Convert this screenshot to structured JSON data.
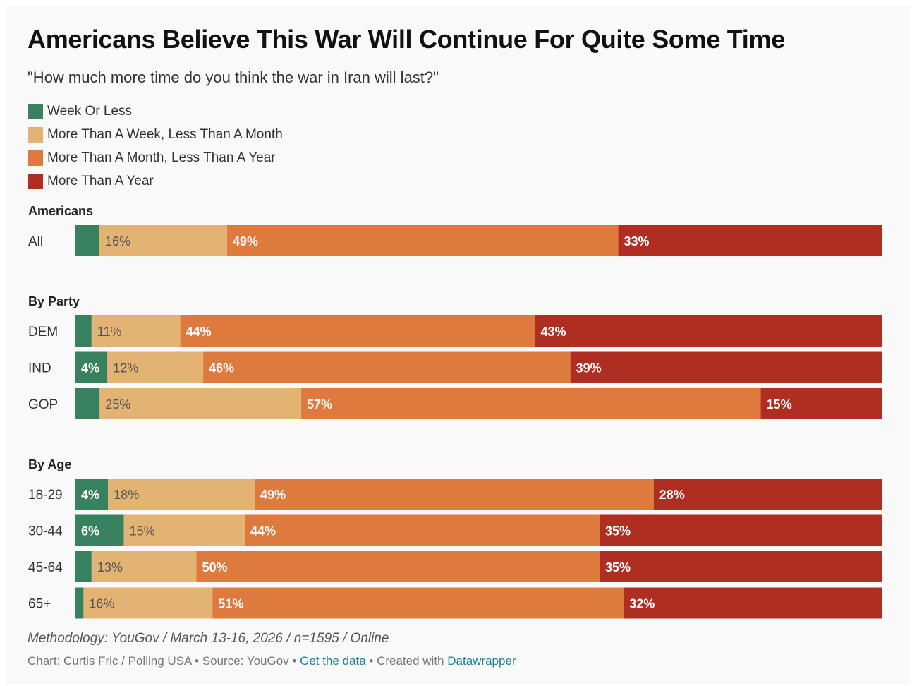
{
  "chart_data": {
    "type": "bar",
    "orientation": "horizontal-stacked-100",
    "title": "Americans Believe This War Will Continue For Quite Some Time",
    "subtitle": "\"How much more time do you think the war in Iran will last?\"",
    "series": [
      {
        "name": "Week Or Less",
        "color": "#37815f"
      },
      {
        "name": "More Than A Week, Less Than A Month",
        "color": "#e3b373"
      },
      {
        "name": "More Than A Month, Less Than A Year",
        "color": "#df7a3f"
      },
      {
        "name": "More Than A Year",
        "color": "#af2d21"
      }
    ],
    "groups": [
      {
        "name": "Americans",
        "rows": [
          {
            "label": "All",
            "values": [
              3,
              16,
              49,
              33
            ],
            "show": [
              false,
              true,
              true,
              true
            ]
          }
        ]
      },
      {
        "name": "By Party",
        "rows": [
          {
            "label": "DEM",
            "values": [
              2,
              11,
              44,
              43
            ],
            "show": [
              false,
              true,
              true,
              true
            ]
          },
          {
            "label": "IND",
            "values": [
              4,
              12,
              46,
              39
            ],
            "show": [
              true,
              true,
              true,
              true
            ]
          },
          {
            "label": "GOP",
            "values": [
              3,
              25,
              57,
              15
            ],
            "show": [
              false,
              true,
              true,
              true
            ]
          }
        ]
      },
      {
        "name": "By Age",
        "rows": [
          {
            "label": "18-29",
            "values": [
              4,
              18,
              49,
              28
            ],
            "show": [
              true,
              true,
              true,
              true
            ]
          },
          {
            "label": "30-44",
            "values": [
              6,
              15,
              44,
              35
            ],
            "show": [
              true,
              true,
              true,
              true
            ]
          },
          {
            "label": "45-64",
            "values": [
              2,
              13,
              50,
              35
            ],
            "show": [
              false,
              true,
              true,
              true
            ]
          },
          {
            "label": "65+",
            "values": [
              1,
              16,
              51,
              32
            ],
            "show": [
              false,
              true,
              true,
              true
            ]
          }
        ]
      }
    ],
    "xlim": [
      0,
      100
    ],
    "value_suffix": "%"
  },
  "footer": {
    "methodology": "Methodology: YouGov / March 13-16, 2026 / n=1595 / Online",
    "chart_by": "Chart: Curtis Fric / Polling USA",
    "separator": " • ",
    "source": "Source: YouGov",
    "get_data": "Get the data",
    "created_with": "Created with ",
    "tool": "Datawrapper"
  }
}
